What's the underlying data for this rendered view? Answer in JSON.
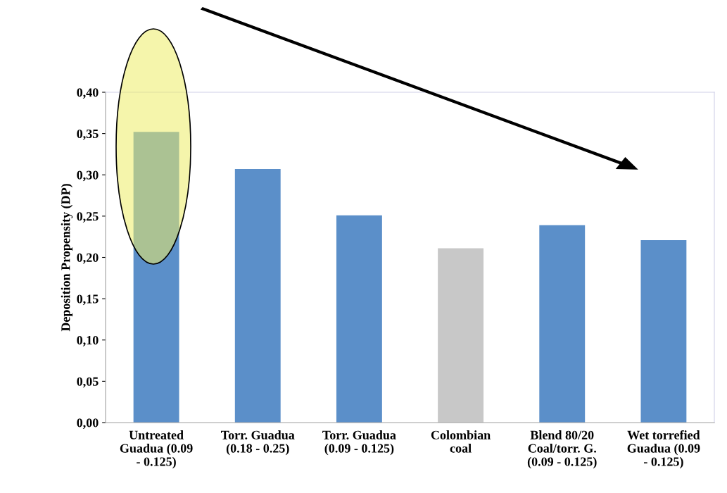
{
  "chart_data": {
    "type": "bar",
    "ylabel": "Deposition Propensity (DP)",
    "categories": [
      "Untreated\nGuadua (0.09\n- 0.125)",
      "Torr. Guadua\n(0.18 - 0.25)",
      "Torr. Guadua\n(0.09 - 0.125)",
      "Colombian\ncoal",
      "Blend 80/20\nCoal/torr. G.\n(0.09 - 0.125)",
      "Wet torrefied\nGuadua (0.09\n- 0.125)"
    ],
    "values": [
      0.352,
      0.307,
      0.251,
      0.211,
      0.239,
      0.221
    ],
    "colors": [
      "#5b8fc9",
      "#5b8fc9",
      "#5b8fc9",
      "#c8c8c8",
      "#5b8fc9",
      "#5b8fc9"
    ],
    "ylim": [
      0,
      0.4
    ],
    "yticks": [
      {
        "value": 0,
        "label": "0,00"
      },
      {
        "value": 0.05,
        "label": "0,05"
      },
      {
        "value": 0.1,
        "label": "0,10"
      },
      {
        "value": 0.15,
        "label": "0,15"
      },
      {
        "value": 0.2,
        "label": "0,20"
      },
      {
        "value": 0.25,
        "label": "0,25"
      },
      {
        "value": 0.3,
        "label": "0,30"
      },
      {
        "value": 0.35,
        "label": "0,35"
      },
      {
        "value": 0.4,
        "label": "0,40"
      }
    ],
    "grid": false,
    "legend": false
  }
}
